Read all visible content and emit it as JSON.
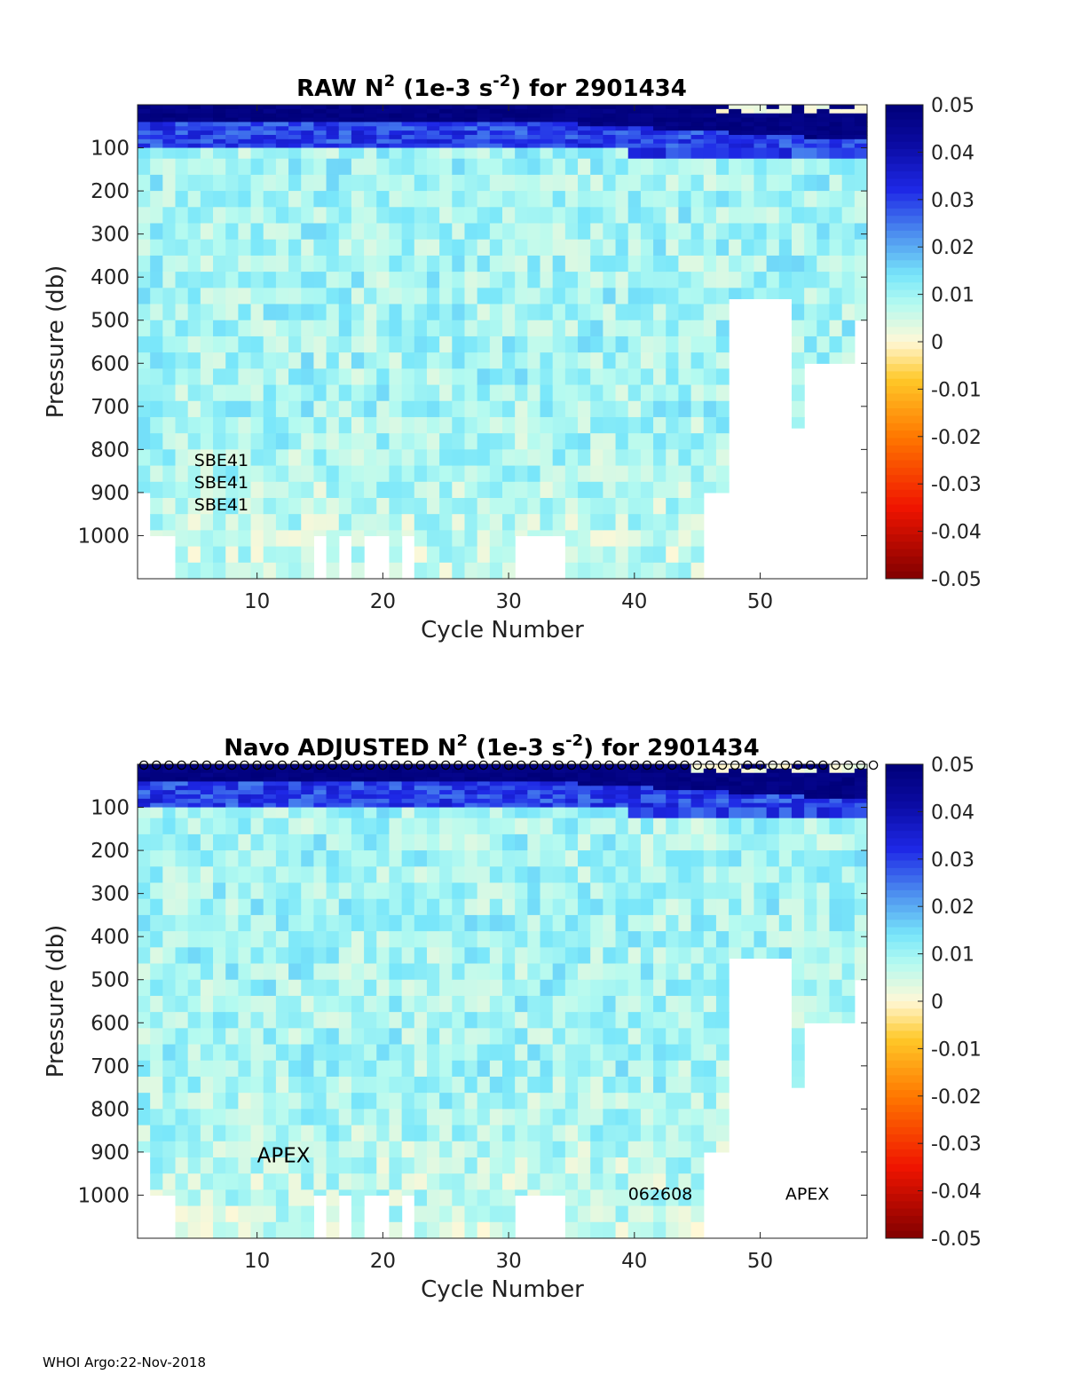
{
  "footer": "WHOI Argo:22-Nov-2018",
  "chart_data": [
    {
      "type": "heatmap",
      "title": "RAW N² (1e-3 s⁻²) for 2901434",
      "title_parts": {
        "prefix": "RAW N",
        "sup1": "2",
        "mid": " (1e-3 s",
        "sup2": "-2",
        "suffix": ") for 2901434"
      },
      "xlabel": "Cycle Number",
      "ylabel": "Pressure (db)",
      "xlim": [
        1,
        58
      ],
      "ylim": [
        1100,
        0
      ],
      "xticks": [
        10,
        20,
        30,
        40,
        50
      ],
      "yticks": [
        100,
        200,
        300,
        400,
        500,
        600,
        700,
        800,
        900,
        1000
      ],
      "colorbar": {
        "clim": [
          -0.05,
          0.05
        ],
        "ticks": [
          "0.05",
          "0.04",
          "0.03",
          "0.02",
          "0.01",
          "0",
          "-0.01",
          "-0.02",
          "-0.03",
          "-0.04",
          "-0.05"
        ]
      },
      "annotations": [
        "SBE41",
        "SBE41",
        "SBE41"
      ],
      "circle_markers": false,
      "max_depth_by_cycle": [
        900,
        1000,
        1000,
        1100,
        1100,
        1100,
        1100,
        1100,
        1100,
        1100,
        1100,
        1100,
        1100,
        1100,
        1000,
        1100,
        1000,
        1100,
        1000,
        1000,
        1100,
        1000,
        1100,
        1100,
        1100,
        1100,
        1100,
        1100,
        1100,
        1100,
        1000,
        1000,
        1000,
        1000,
        1100,
        1100,
        1100,
        1100,
        1100,
        1100,
        1100,
        1100,
        1100,
        1100,
        1100,
        900,
        900,
        450,
        450,
        450,
        450,
        450,
        750,
        600,
        600,
        600,
        600,
        500
      ],
      "profile": {
        "surface_n2": 0.05,
        "mixed_n2": 0.024,
        "deep_n2": 0.009
      }
    },
    {
      "type": "heatmap",
      "title": "Navo  ADJUSTED N² (1e-3 s⁻²) for 2901434",
      "title_parts": {
        "prefix": "Navo  ADJUSTED N",
        "sup1": "2",
        "mid": " (1e-3 s",
        "sup2": "-2",
        "suffix": ") for 2901434"
      },
      "xlabel": "Cycle Number",
      "ylabel": "Pressure (db)",
      "xlim": [
        1,
        58
      ],
      "ylim": [
        1100,
        0
      ],
      "xticks": [
        10,
        20,
        30,
        40,
        50
      ],
      "yticks": [
        100,
        200,
        300,
        400,
        500,
        600,
        700,
        800,
        900,
        1000
      ],
      "colorbar": {
        "clim": [
          -0.05,
          0.05
        ],
        "ticks": [
          "0.05",
          "0.04",
          "0.03",
          "0.02",
          "0.01",
          "0",
          "-0.01",
          "-0.02",
          "-0.03",
          "-0.04",
          "-0.05"
        ]
      },
      "annotations": [
        "APEX",
        "062608",
        "APEX"
      ],
      "circle_markers": true,
      "max_depth_by_cycle": [
        900,
        1000,
        1000,
        1100,
        1100,
        1100,
        1100,
        1100,
        1100,
        1100,
        1100,
        1100,
        1100,
        1100,
        1000,
        1100,
        1000,
        1100,
        1000,
        1000,
        1100,
        1000,
        1100,
        1100,
        1100,
        1100,
        1100,
        1100,
        1100,
        1100,
        1000,
        1000,
        1000,
        1000,
        1100,
        1100,
        1100,
        1100,
        1100,
        1100,
        1100,
        1100,
        1100,
        1100,
        1100,
        900,
        900,
        450,
        450,
        450,
        450,
        450,
        750,
        600,
        600,
        600,
        600,
        500
      ],
      "profile": {
        "surface_n2": 0.05,
        "mixed_n2": 0.024,
        "deep_n2": 0.009
      }
    }
  ]
}
